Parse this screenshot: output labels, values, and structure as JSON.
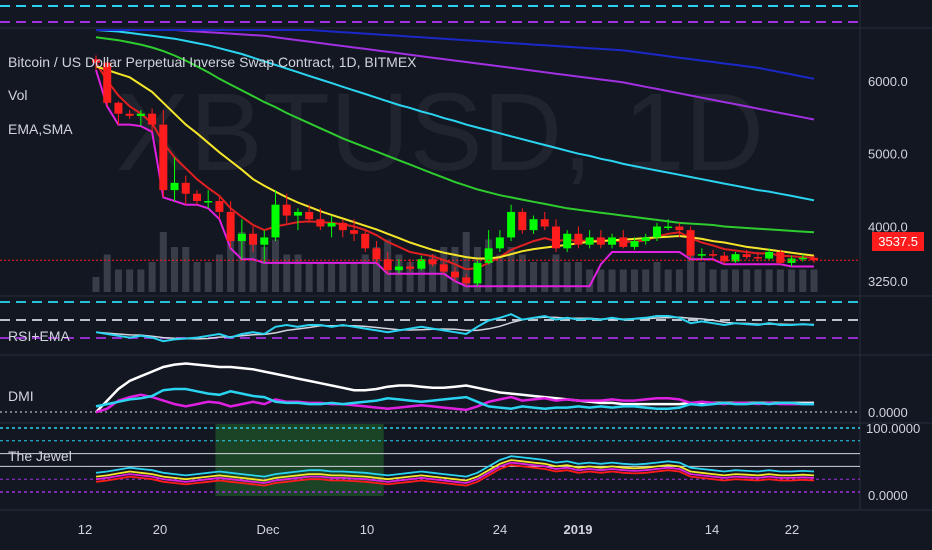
{
  "header": {
    "symbol_line": "Bitcoin / US Dollar Perpetual Inverse Swap Contract, 1D, BITMEX",
    "vol_label": "Vol",
    "ma_label": "EMA,SMA",
    "watermark": "XBTUSD, 1D"
  },
  "panes": {
    "rsi_label": "RSI+EMA",
    "dmi_label": "DMI",
    "jewel_label": "The Jewel"
  },
  "price_axis": {
    "ticks": [
      "6000.0",
      "5000.0",
      "4000.0",
      "3250.0"
    ],
    "current_price": "3537.5",
    "dmi_tick": "0.0000",
    "jewel_top": "100.0000",
    "jewel_bottom": "0.0000"
  },
  "time_axis": {
    "ticks": [
      "12",
      "20",
      "Dec",
      "10",
      "24",
      "2019",
      "14",
      "22"
    ]
  },
  "colors": {
    "up": "#00ff00",
    "down": "#ff1c1c",
    "ema_red": "#e02020",
    "sma_yellow": "#f5e62a",
    "sma_green": "#2ecc2e",
    "sma_cyan": "#2ad4f0",
    "sma_purple": "#a030e0",
    "sma_blue": "#1a28c8",
    "magenta": "#e020e0"
  },
  "chart_data": {
    "type": "candlestick",
    "title": "Bitcoin / US Dollar Perpetual Inverse Swap Contract, 1D, BITMEX",
    "xlabel": "",
    "ylabel": "",
    "ylim": [
      3100,
      6700
    ],
    "yticks": [
      3250,
      4000,
      5000,
      6000
    ],
    "xticks": [
      "12",
      "20",
      "Dec",
      "10",
      "24",
      "2019",
      "14",
      "22"
    ],
    "grid": false,
    "candles": [
      [
        6300,
        6350,
        6150,
        6250
      ],
      [
        6250,
        6280,
        5650,
        5700
      ],
      [
        5700,
        5720,
        5400,
        5550
      ],
      [
        5550,
        5600,
        5480,
        5520
      ],
      [
        5520,
        5600,
        5380,
        5550
      ],
      [
        5550,
        5620,
        5300,
        5400
      ],
      [
        5400,
        5600,
        4400,
        4500
      ],
      [
        4500,
        4950,
        4350,
        4600
      ],
      [
        4600,
        4700,
        4300,
        4450
      ],
      [
        4450,
        4500,
        4300,
        4350
      ],
      [
        4350,
        4500,
        4250,
        4350
      ],
      [
        4350,
        4400,
        4100,
        4200
      ],
      [
        4200,
        4350,
        3700,
        3800
      ],
      [
        3800,
        4100,
        3550,
        3900
      ],
      [
        3900,
        4000,
        3650,
        3750
      ],
      [
        3750,
        3950,
        3500,
        3850
      ],
      [
        3850,
        4500,
        3800,
        4300
      ],
      [
        4300,
        4450,
        4050,
        4150
      ],
      [
        4150,
        4250,
        3950,
        4200
      ],
      [
        4200,
        4300,
        4050,
        4100
      ],
      [
        4100,
        4250,
        3950,
        4000
      ],
      [
        4000,
        4150,
        3850,
        4050
      ],
      [
        4050,
        4100,
        3850,
        3950
      ],
      [
        3950,
        4100,
        3800,
        3900
      ],
      [
        3900,
        3950,
        3650,
        3700
      ],
      [
        3700,
        3800,
        3500,
        3550
      ],
      [
        3550,
        3650,
        3350,
        3400
      ],
      [
        3400,
        3550,
        3350,
        3450
      ],
      [
        3450,
        3550,
        3380,
        3420
      ],
      [
        3420,
        3600,
        3400,
        3550
      ],
      [
        3550,
        3620,
        3450,
        3480
      ],
      [
        3480,
        3520,
        3350,
        3380
      ],
      [
        3380,
        3450,
        3250,
        3300
      ],
      [
        3300,
        3350,
        3180,
        3220
      ],
      [
        3220,
        3550,
        3180,
        3500
      ],
      [
        3500,
        3950,
        3480,
        3700
      ],
      [
        3700,
        3950,
        3650,
        3850
      ],
      [
        3850,
        4300,
        3800,
        4200
      ],
      [
        4200,
        4250,
        3900,
        3950
      ],
      [
        3950,
        4150,
        3900,
        4100
      ],
      [
        4100,
        4200,
        3950,
        4000
      ],
      [
        4000,
        4100,
        3650,
        3700
      ],
      [
        3700,
        3950,
        3650,
        3900
      ],
      [
        3900,
        4000,
        3700,
        3750
      ],
      [
        3750,
        3950,
        3700,
        3850
      ],
      [
        3850,
        3950,
        3700,
        3750
      ],
      [
        3750,
        3900,
        3700,
        3850
      ],
      [
        3850,
        3950,
        3700,
        3720
      ],
      [
        3720,
        3850,
        3680,
        3800
      ],
      [
        3800,
        3900,
        3750,
        3850
      ],
      [
        3850,
        4050,
        3800,
        4000
      ],
      [
        4000,
        4100,
        3950,
        4000
      ],
      [
        4000,
        4050,
        3850,
        3950
      ],
      [
        3950,
        4000,
        3550,
        3600
      ],
      [
        3600,
        3700,
        3550,
        3620
      ],
      [
        3620,
        3680,
        3560,
        3600
      ],
      [
        3600,
        3650,
        3480,
        3520
      ],
      [
        3520,
        3650,
        3500,
        3620
      ],
      [
        3620,
        3680,
        3550,
        3580
      ],
      [
        3580,
        3650,
        3520,
        3560
      ],
      [
        3560,
        3700,
        3540,
        3650
      ],
      [
        3650,
        3680,
        3480,
        3500
      ],
      [
        3500,
        3600,
        3450,
        3560
      ],
      [
        3560,
        3620,
        3520,
        3570
      ],
      [
        3570,
        3600,
        3500,
        3537
      ]
    ],
    "series": [
      {
        "name": "EMA",
        "color": "#e02020",
        "values": [
          6250,
          6000,
          5800,
          5650,
          5550,
          5420,
          5150,
          4950,
          4800,
          4650,
          4530,
          4420,
          4250,
          4130,
          4020,
          3950,
          4000,
          4030,
          4060,
          4070,
          4060,
          4050,
          4030,
          4000,
          3950,
          3880,
          3790,
          3720,
          3650,
          3620,
          3590,
          3540,
          3480,
          3410,
          3430,
          3500,
          3580,
          3680,
          3740,
          3800,
          3840,
          3800,
          3820,
          3800,
          3810,
          3800,
          3810,
          3790,
          3790,
          3810,
          3860,
          3900,
          3920,
          3840,
          3780,
          3740,
          3690,
          3670,
          3650,
          3630,
          3630,
          3600,
          3590,
          3580,
          3570
        ]
      },
      {
        "name": "SMA 20",
        "color": "#f5e62a",
        "values": [
          6200,
          6150,
          6100,
          6050,
          5950,
          5850,
          5700,
          5550,
          5400,
          5280,
          5150,
          5020,
          4900,
          4780,
          4650,
          4560,
          4480,
          4400,
          4330,
          4270,
          4210,
          4160,
          4110,
          4060,
          4010,
          3960,
          3900,
          3840,
          3780,
          3730,
          3680,
          3640,
          3610,
          3580,
          3560,
          3560,
          3580,
          3620,
          3660,
          3690,
          3710,
          3730,
          3750,
          3770,
          3790,
          3800,
          3810,
          3820,
          3830,
          3840,
          3850,
          3860,
          3870,
          3850,
          3830,
          3800,
          3780,
          3750,
          3720,
          3700,
          3680,
          3660,
          3640,
          3620,
          3600
        ]
      },
      {
        "name": "SMA 50",
        "color": "#2ecc2e",
        "values": [
          6600,
          6580,
          6560,
          6530,
          6500,
          6460,
          6410,
          6350,
          6280,
          6200,
          6120,
          6030,
          5950,
          5870,
          5790,
          5710,
          5640,
          5560,
          5490,
          5420,
          5350,
          5280,
          5210,
          5150,
          5090,
          5030,
          4970,
          4910,
          4850,
          4790,
          4730,
          4670,
          4610,
          4560,
          4510,
          4470,
          4430,
          4400,
          4370,
          4340,
          4310,
          4280,
          4250,
          4230,
          4210,
          4190,
          4170,
          4150,
          4130,
          4110,
          4090,
          4070,
          4050,
          4040,
          4030,
          4020,
          4000,
          3990,
          3980,
          3970,
          3960,
          3950,
          3940,
          3930,
          3920
        ]
      },
      {
        "name": "SMA 100",
        "color": "#2ad4f0",
        "values": [
          6700,
          6690,
          6680,
          6660,
          6640,
          6620,
          6600,
          6580,
          6550,
          6520,
          6490,
          6450,
          6410,
          6370,
          6320,
          6270,
          6220,
          6170,
          6120,
          6070,
          6020,
          5970,
          5920,
          5870,
          5820,
          5770,
          5720,
          5670,
          5630,
          5580,
          5540,
          5490,
          5450,
          5400,
          5360,
          5320,
          5280,
          5240,
          5200,
          5160,
          5120,
          5080,
          5040,
          5000,
          4970,
          4930,
          4900,
          4860,
          4830,
          4800,
          4770,
          4740,
          4710,
          4680,
          4650,
          4620,
          4590,
          4560,
          4530,
          4500,
          4480,
          4450,
          4420,
          4390,
          4360
        ]
      },
      {
        "name": "SMA 150",
        "color": "#a030e0",
        "values": [
          6700,
          6700,
          6700,
          6700,
          6700,
          6700,
          6700,
          6700,
          6690,
          6680,
          6670,
          6660,
          6650,
          6640,
          6630,
          6620,
          6600,
          6580,
          6560,
          6540,
          6520,
          6500,
          6480,
          6460,
          6440,
          6420,
          6400,
          6380,
          6360,
          6340,
          6320,
          6300,
          6280,
          6260,
          6240,
          6220,
          6200,
          6180,
          6160,
          6140,
          6120,
          6100,
          6080,
          6060,
          6040,
          6020,
          6000,
          5980,
          5950,
          5920,
          5890,
          5860,
          5830,
          5800,
          5770,
          5740,
          5710,
          5680,
          5650,
          5620,
          5590,
          5560,
          5530,
          5500,
          5470
        ]
      },
      {
        "name": "SMA 200",
        "color": "#1a28c8",
        "values": [
          6700,
          6700,
          6700,
          6700,
          6700,
          6700,
          6700,
          6700,
          6700,
          6700,
          6700,
          6700,
          6700,
          6700,
          6700,
          6700,
          6700,
          6700,
          6700,
          6700,
          6690,
          6680,
          6670,
          6660,
          6650,
          6640,
          6630,
          6620,
          6610,
          6600,
          6590,
          6580,
          6570,
          6560,
          6550,
          6540,
          6530,
          6520,
          6510,
          6500,
          6490,
          6480,
          6470,
          6460,
          6450,
          6440,
          6430,
          6420,
          6400,
          6380,
          6360,
          6340,
          6320,
          6300,
          6280,
          6260,
          6240,
          6220,
          6200,
          6180,
          6150,
          6120,
          6090,
          6060,
          6030
        ]
      }
    ],
    "volume": [
      2,
      5,
      3,
      3,
      3,
      4,
      8,
      6,
      6,
      4,
      4,
      5,
      7,
      8,
      7,
      6,
      7,
      5,
      5,
      4,
      4,
      4,
      4,
      4,
      5,
      6,
      7,
      5,
      4,
      4,
      5,
      6,
      6,
      8,
      6,
      7,
      5,
      6,
      5,
      4,
      4,
      5,
      4,
      4,
      3,
      3,
      3,
      3,
      3,
      3,
      4,
      3,
      3,
      5,
      4,
      3,
      3,
      3,
      3,
      3,
      3,
      3,
      3,
      3,
      3
    ],
    "rsi": [
      42,
      40,
      38,
      36,
      38,
      36,
      32,
      34,
      35,
      36,
      38,
      40,
      36,
      40,
      42,
      40,
      48,
      50,
      48,
      50,
      50,
      48,
      50,
      48,
      46,
      44,
      42,
      44,
      46,
      48,
      46,
      44,
      42,
      40,
      48,
      55,
      58,
      62,
      56,
      58,
      60,
      56,
      58,
      56,
      57,
      56,
      58,
      56,
      57,
      58,
      60,
      60,
      58,
      52,
      54,
      52,
      50,
      52,
      51,
      50,
      52,
      50,
      50,
      51,
      50
    ],
    "dmi_plus": [
      5,
      8,
      15,
      18,
      20,
      18,
      15,
      12,
      10,
      12,
      14,
      13,
      10,
      12,
      14,
      12,
      16,
      14,
      14,
      13,
      13,
      12,
      12,
      11,
      10,
      9,
      8,
      9,
      10,
      11,
      10,
      9,
      8,
      7,
      10,
      14,
      16,
      18,
      15,
      16,
      17,
      15,
      16,
      15,
      15,
      15,
      16,
      15,
      15,
      16,
      17,
      17,
      16,
      13,
      14,
      13,
      12,
      13,
      13,
      12,
      13,
      12,
      12,
      12,
      12
    ],
    "dmi_minus": [
      10,
      12,
      14,
      16,
      17,
      19,
      24,
      25,
      25,
      23,
      21,
      20,
      23,
      21,
      19,
      18,
      14,
      13,
      13,
      12,
      12,
      13,
      12,
      13,
      14,
      15,
      17,
      16,
      15,
      14,
      15,
      16,
      17,
      18,
      14,
      10,
      9,
      8,
      10,
      9,
      8,
      9,
      9,
      10,
      9,
      10,
      9,
      10,
      10,
      9,
      8,
      8,
      9,
      12,
      11,
      12,
      13,
      12,
      12,
      13,
      12,
      13,
      13,
      12,
      12
    ],
    "adx": [
      5,
      15,
      25,
      32,
      36,
      40,
      44,
      46,
      47,
      46,
      45,
      44,
      44,
      43,
      42,
      40,
      38,
      36,
      34,
      32,
      30,
      28,
      26,
      24,
      24,
      25,
      27,
      28,
      28,
      27,
      26,
      26,
      27,
      28,
      26,
      24,
      22,
      21,
      20,
      19,
      18,
      17,
      16,
      15,
      14,
      13,
      13,
      12,
      12,
      12,
      12,
      12,
      12,
      13,
      13,
      13,
      13,
      13,
      13,
      13,
      13,
      13,
      13,
      13,
      13
    ],
    "jewel": [
      30,
      32,
      35,
      38,
      36,
      34,
      30,
      28,
      26,
      28,
      30,
      32,
      30,
      28,
      26,
      24,
      28,
      30,
      32,
      34,
      34,
      32,
      32,
      31,
      30,
      28,
      26,
      28,
      30,
      32,
      30,
      28,
      26,
      24,
      30,
      40,
      50,
      56,
      54,
      52,
      50,
      46,
      48,
      44,
      46,
      44,
      46,
      44,
      43,
      44,
      46,
      48,
      46,
      38,
      36,
      34,
      32,
      34,
      33,
      32,
      34,
      32,
      32,
      33,
      32
    ]
  }
}
